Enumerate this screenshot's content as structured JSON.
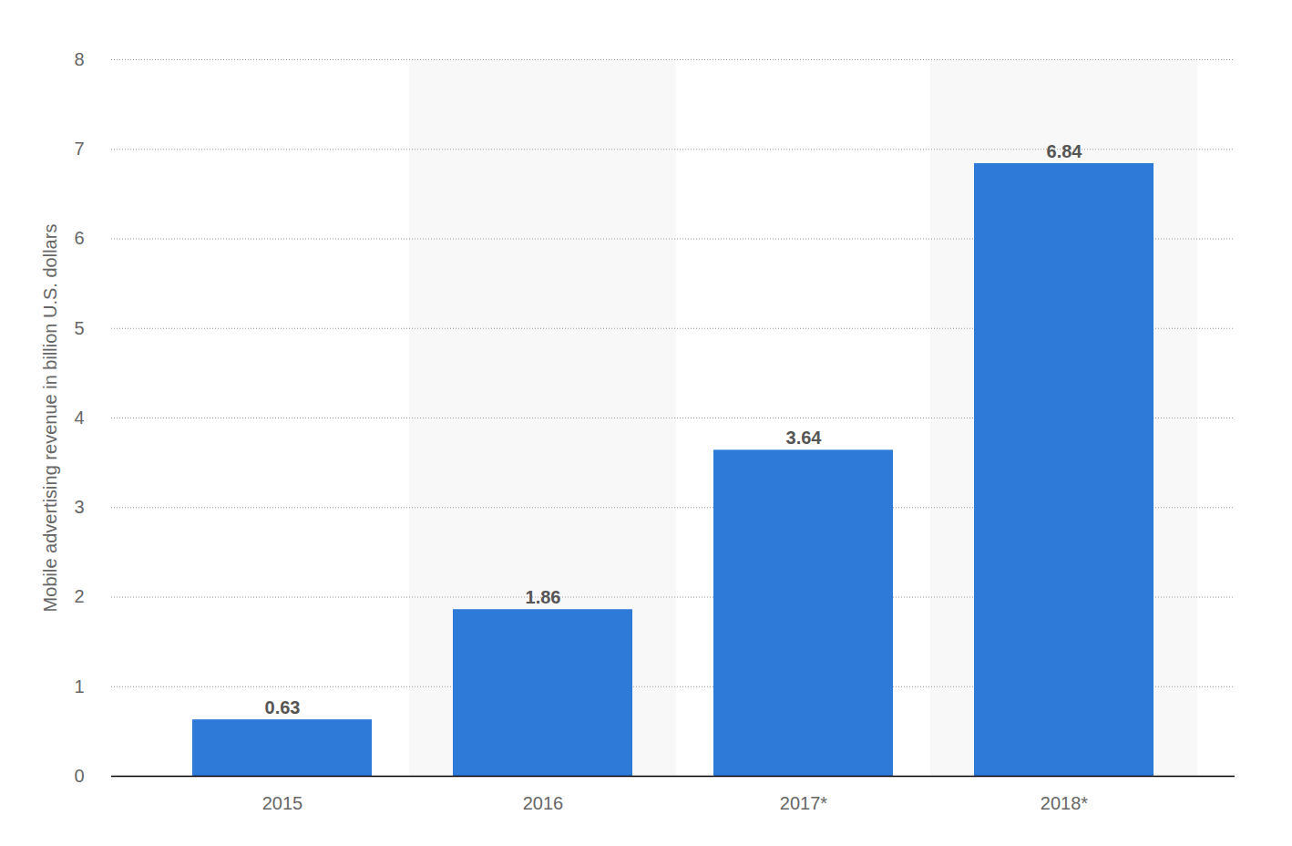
{
  "chart_data": {
    "type": "bar",
    "y_label": "Mobile advertising revenue in billion U.S. dollars",
    "categories": [
      "2015",
      "2016",
      "2017*",
      "2018*"
    ],
    "values": [
      0.63,
      1.86,
      3.64,
      6.84
    ],
    "color": "#2e7ad8",
    "ylim": [
      0,
      8
    ],
    "yticks": [
      0,
      1,
      2,
      3,
      4,
      5,
      6,
      7,
      8
    ],
    "grid": true,
    "data_labels": true
  }
}
